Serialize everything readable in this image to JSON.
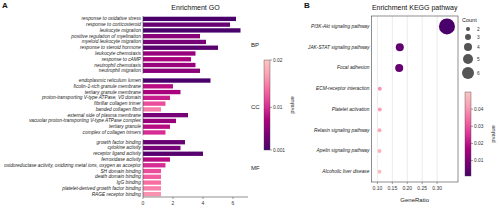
{
  "chart_data": [
    {
      "type": "bar",
      "orientation": "horizontal",
      "panel_label": "A",
      "title": "Enrichment GO",
      "panels": [
        {
          "label": "BP",
          "categories": [
            "response to oxidative stress",
            "response to corticosteroid",
            "leukocyte migration",
            "positive regulation of myelination",
            "myeloid leukocyte migration",
            "response to steroid hormone",
            "leukocyte chemotaxis",
            "response to cAMP",
            "neutrophil chemotaxis",
            "neutrophil migration"
          ],
          "values": [
            6.2,
            5.8,
            6.5,
            3.8,
            4.2,
            5.0,
            3.5,
            3.2,
            3.5,
            3.8
          ],
          "pvalues": [
            0.001,
            0.003,
            0.001,
            0.005,
            0.004,
            0.002,
            0.006,
            0.007,
            0.006,
            0.005
          ]
        },
        {
          "label": "CC",
          "categories": [
            "endoplasmic reticulum lumen",
            "ficolin-1-rich granule membrane",
            "tertiary granule membrane",
            "proton-transporting V-type ATPase, V0 domain",
            "fibrillar collagen trimer",
            "banded collagen fibril",
            "external side of plasma membrane",
            "vacuolar proton-transporting V-type ATPase complex",
            "tertiary granule",
            "complex of collagen trimers"
          ],
          "values": [
            4.5,
            2.0,
            2.5,
            1.8,
            1.5,
            1.2,
            3.0,
            2.2,
            1.8,
            1.5
          ],
          "pvalues": [
            0.001,
            0.008,
            0.007,
            0.009,
            0.012,
            0.015,
            0.004,
            0.006,
            0.008,
            0.01
          ]
        },
        {
          "label": "MF",
          "categories": [
            "growth factor binding",
            "cytokine activity",
            "receptor ligand activity",
            "ferroxidase activity",
            "oxidoreductase activity, oxidizing metal ions, oxygen as acceptor",
            "SH domain binding",
            "death domain binding",
            "IgG binding",
            "platelet-derived growth factor binding",
            "RAGE receptor binding"
          ],
          "values": [
            2.8,
            2.5,
            4.0,
            1.8,
            1.5,
            1.2,
            1.2,
            1.2,
            1.2,
            1.2
          ],
          "pvalues": [
            0.003,
            0.004,
            0.002,
            0.008,
            0.01,
            0.012,
            0.013,
            0.014,
            0.015,
            0.016
          ]
        }
      ],
      "xlim": [
        0,
        7
      ],
      "xticks": [
        0,
        2,
        4,
        6
      ],
      "grid": false,
      "color_label": "pvalue",
      "color_range": [
        0.001,
        0.02
      ],
      "color_ticks": [
        0.001,
        0.01,
        0.02
      ]
    },
    {
      "type": "scatter",
      "panel_label": "B",
      "title": "Enrichment KEGG pathway",
      "categories": [
        "PI3K-Akt signaling pathway",
        "JAK-STAT signaling pathway",
        "Focal adhesion",
        "ECM-receptor interaction",
        "Platelet activation",
        "Relaxin signaling pathway",
        "Apelin signaling pathway",
        "Alcoholic liver disease"
      ],
      "x": [
        0.333,
        0.175,
        0.173,
        0.108,
        0.108,
        0.107,
        0.107,
        0.107
      ],
      "sizes": [
        8,
        4,
        4,
        2,
        2,
        2,
        2,
        2
      ],
      "pvalues": [
        0.001,
        0.005,
        0.006,
        0.04,
        0.042,
        0.044,
        0.046,
        0.048
      ],
      "xlabel": "GeneRatio",
      "xlim": [
        0.08,
        0.37
      ],
      "xticks": [
        {
          "value": 0.1,
          "label": "0.10"
        },
        0.15,
        {
          "value": 0.2,
          "label": "0.20"
        },
        0.25,
        {
          "value": 0.3,
          "label": "0.30"
        }
      ],
      "grid": true,
      "size_legend_title": "Count",
      "size_legend": [
        2,
        3,
        4,
        5,
        6
      ],
      "color_label": "pvalue",
      "color_range": [
        0.001,
        0.05
      ],
      "color_ticks": [
        0.01,
        0.02,
        0.03,
        0.04
      ]
    }
  ]
}
